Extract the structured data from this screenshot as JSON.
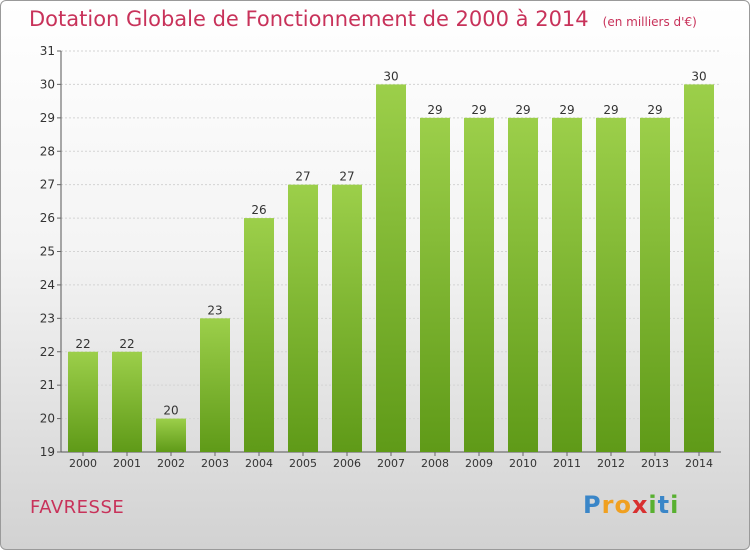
{
  "title": "Dotation Globale de Fonctionnement de 2000 à 2014",
  "unit": "(en milliers d'€)",
  "commune": "FAVRESSE",
  "logo": {
    "letters": [
      "P",
      "r",
      "o",
      "x",
      "i",
      "t",
      "i"
    ],
    "colors": [
      "#3a86c8",
      "#f0a020",
      "#f0a020",
      "#d83030",
      "#58b030",
      "#3a86c8",
      "#58b030"
    ]
  },
  "colors": {
    "bar": "#7fc02a",
    "bar_light": "#9ccf4a",
    "bar_dark": "#5f9a18",
    "accent": "#c8325a"
  },
  "chart_data": {
    "type": "bar",
    "categories": [
      "2000",
      "2001",
      "2002",
      "2003",
      "2004",
      "2005",
      "2006",
      "2007",
      "2008",
      "2009",
      "2010",
      "2011",
      "2012",
      "2013",
      "2014"
    ],
    "values": [
      22,
      22,
      20,
      23,
      26,
      27,
      27,
      30,
      29,
      29,
      29,
      29,
      29,
      29,
      30
    ],
    "ylim": [
      19,
      31
    ],
    "yticks": [
      19,
      20,
      21,
      22,
      23,
      24,
      25,
      26,
      27,
      28,
      29,
      30,
      31
    ],
    "grid": "horizontal"
  }
}
